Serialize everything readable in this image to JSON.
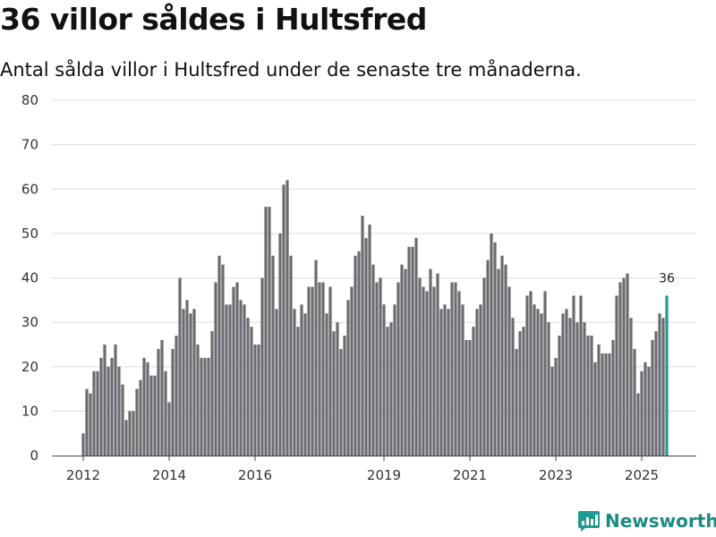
{
  "page": {
    "title": "36 villor såldes i Hultsfred",
    "subtitle": "Antal sålda villor i Hultsfred under de senaste tre månaderna."
  },
  "brand": {
    "name": "Newsworthy",
    "color": "#1f9a92"
  },
  "colors": {
    "bar": "#6b6a70",
    "highlight": "#1f9a92",
    "grid": "#dcdcdc"
  },
  "chart_data": {
    "type": "bar",
    "title": "36 villor såldes i Hultsfred",
    "subtitle": "Antal sålda villor i Hultsfred under de senaste tre månaderna.",
    "xlabel": "",
    "ylabel": "",
    "ylim": [
      0,
      80
    ],
    "yticks": [
      0,
      10,
      20,
      30,
      40,
      50,
      60,
      70,
      80
    ],
    "xticks": [
      {
        "label": "2012",
        "index": 0
      },
      {
        "label": "2014",
        "index": 24
      },
      {
        "label": "2016",
        "index": 48
      },
      {
        "label": "2019",
        "index": 84
      },
      {
        "label": "2021",
        "index": 108
      },
      {
        "label": "2023",
        "index": 132
      },
      {
        "label": "2025",
        "index": 156
      }
    ],
    "start_period": "2012-01",
    "values": [
      5,
      15,
      14,
      19,
      19,
      22,
      25,
      20,
      22,
      25,
      20,
      16,
      8,
      10,
      10,
      15,
      17,
      22,
      21,
      18,
      18,
      24,
      26,
      19,
      12,
      24,
      27,
      40,
      33,
      35,
      32,
      33,
      25,
      22,
      22,
      22,
      28,
      39,
      45,
      43,
      34,
      34,
      38,
      39,
      35,
      34,
      31,
      29,
      25,
      25,
      40,
      56,
      56,
      45,
      33,
      50,
      61,
      62,
      45,
      33,
      29,
      34,
      32,
      38,
      38,
      44,
      39,
      39,
      32,
      38,
      28,
      30,
      24,
      27,
      35,
      38,
      45,
      46,
      54,
      49,
      52,
      43,
      39,
      40,
      34,
      29,
      30,
      34,
      39,
      43,
      42,
      47,
      47,
      49,
      40,
      38,
      37,
      42,
      38,
      41,
      33,
      34,
      33,
      39,
      39,
      37,
      34,
      26,
      26,
      29,
      33,
      34,
      40,
      44,
      50,
      48,
      42,
      45,
      43,
      38,
      31,
      24,
      28,
      29,
      36,
      37,
      34,
      33,
      32,
      37,
      30,
      20,
      22,
      27,
      32,
      33,
      31,
      36,
      30,
      36,
      30,
      27,
      27,
      21,
      25,
      23,
      23,
      23,
      26,
      36,
      39,
      40,
      41,
      31,
      24,
      14,
      19,
      21,
      20,
      26,
      28,
      32,
      31,
      36
    ],
    "highlight_last": true,
    "annotation": "36"
  }
}
